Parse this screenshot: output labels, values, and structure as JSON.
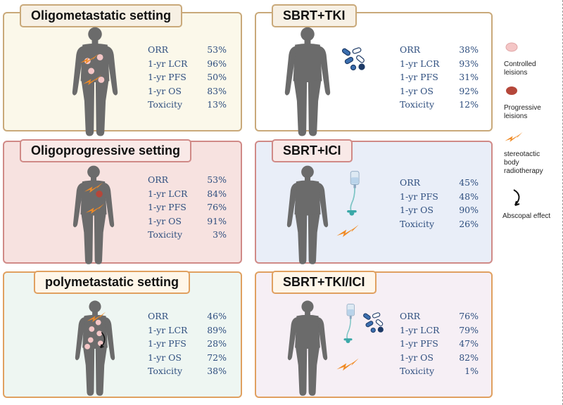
{
  "panels": {
    "oligometastatic": {
      "title": "Oligometastatic setting",
      "stats": [
        {
          "label": "ORR",
          "value": "53%"
        },
        {
          "label": "1-yr LCR",
          "value": "96%"
        },
        {
          "label": "1-yr PFS",
          "value": "50%"
        },
        {
          "label": "1-yr  OS",
          "value": "83%"
        },
        {
          "label": "Toxicity",
          "value": "13%"
        }
      ],
      "colors": {
        "background": "#fbf8ea",
        "border": "#c9a97a"
      }
    },
    "sbrt_tki": {
      "title": "SBRT+TKI",
      "stats": [
        {
          "label": "ORR",
          "value": "38%"
        },
        {
          "label": "1-yr LCR",
          "value": "93%"
        },
        {
          "label": "1-yr PFS",
          "value": "31%"
        },
        {
          "label": "1-yr  OS",
          "value": "92%"
        },
        {
          "label": "Toxicity",
          "value": "12%"
        }
      ],
      "colors": {
        "background": "#ffffff",
        "border": "#c9a97a"
      }
    },
    "oligoprogressive": {
      "title": "Oligoprogressive setting",
      "stats": [
        {
          "label": "ORR",
          "value": "53%"
        },
        {
          "label": "1-yr LCR",
          "value": "84%"
        },
        {
          "label": "1-yr PFS",
          "value": "76%"
        },
        {
          "label": "1-yr  OS",
          "value": "91%"
        },
        {
          "label": "Toxicity",
          "value": "3%"
        }
      ],
      "colors": {
        "background": "#f7e2e0",
        "border": "#d08a87"
      }
    },
    "sbrt_ici": {
      "title": "SBRT+ICI",
      "stats": [
        {
          "label": "ORR",
          "value": "45%"
        },
        {
          "label": "1-yr PFS",
          "value": "48%"
        },
        {
          "label": "1-yr  OS",
          "value": "90%"
        },
        {
          "label": "Toxicity",
          "value": "26%"
        }
      ],
      "colors": {
        "background": "#e9eef8",
        "border": "#d08a87"
      }
    },
    "polymetastatic": {
      "title": "polymetastatic setting",
      "stats": [
        {
          "label": "ORR",
          "value": "46%"
        },
        {
          "label": "1-yr LCR",
          "value": "89%"
        },
        {
          "label": "1-yr PFS",
          "value": "28%"
        },
        {
          "label": "1-yr  OS",
          "value": "72%"
        },
        {
          "label": "Toxicity",
          "value": "38%"
        }
      ],
      "colors": {
        "background": "#eef6f2",
        "border": "#e0a060"
      }
    },
    "sbrt_tki_ici": {
      "title": "SBRT+TKI/ICI",
      "stats": [
        {
          "label": "ORR",
          "value": "76%"
        },
        {
          "label": "1-yr LCR",
          "value": "79%"
        },
        {
          "label": "1-yr PFS",
          "value": "47%"
        },
        {
          "label": "1-yr  OS",
          "value": "82%"
        },
        {
          "label": "Toxicity",
          "value": "1%"
        }
      ],
      "colors": {
        "background": "#f6eff5",
        "border": "#e0a060"
      }
    }
  },
  "legend": {
    "controlled": "Controlled leisions",
    "progressive": "Progressive leisions",
    "sbrt": "stereotactic body radiotherapy",
    "abscopal": "Abscopal effect"
  },
  "colors": {
    "human_body": "#6b6b6b",
    "controlled_lesion": "#f4c6c6",
    "progressive_lesion": "#b5473a",
    "radiation_bolt": "#f08a24",
    "stat_text": "#2f4f7f"
  },
  "icons": [
    "human-body-icon",
    "pills-icon",
    "iv-drip-icon",
    "lightning-icon",
    "lesion-icon",
    "curved-arrow-icon"
  ]
}
